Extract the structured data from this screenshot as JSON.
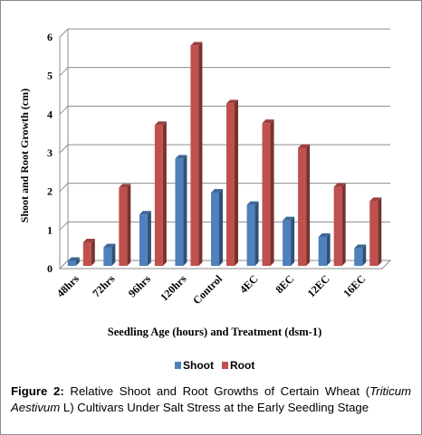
{
  "chart_data": {
    "type": "bar",
    "categories": [
      "48hrs",
      "72hrs",
      "96hrs",
      "120hrs",
      "Control",
      "4EC",
      "8EC",
      "12EC",
      "16EC"
    ],
    "series": [
      {
        "name": "Shoot",
        "color": "#4f81bd",
        "values": [
          0.2,
          0.55,
          1.4,
          2.85,
          1.97,
          1.65,
          1.25,
          0.82,
          0.53
        ]
      },
      {
        "name": "Root",
        "color": "#c0504d",
        "values": [
          0.68,
          2.1,
          3.72,
          5.78,
          4.28,
          3.77,
          3.13,
          2.12,
          1.75
        ]
      }
    ],
    "xlabel": "Seedling Age  (hours) and Treatment (dsm-1)",
    "ylabel": "Shoot and Root Growth (cm)",
    "ylim": [
      0,
      6
    ],
    "yticks": [
      "0",
      "1",
      "2",
      "3",
      "4",
      "5",
      "6"
    ],
    "grid": true,
    "legend_position": "bottom"
  },
  "caption": {
    "label": "Figure 2:",
    "text_before": " Relative Shoot and Root Growths of Certain Wheat (",
    "italic_text": "Triticum Aestivum",
    "text_after": " L) Cultivars Under Salt Stress at the Early Seedling Stage"
  }
}
